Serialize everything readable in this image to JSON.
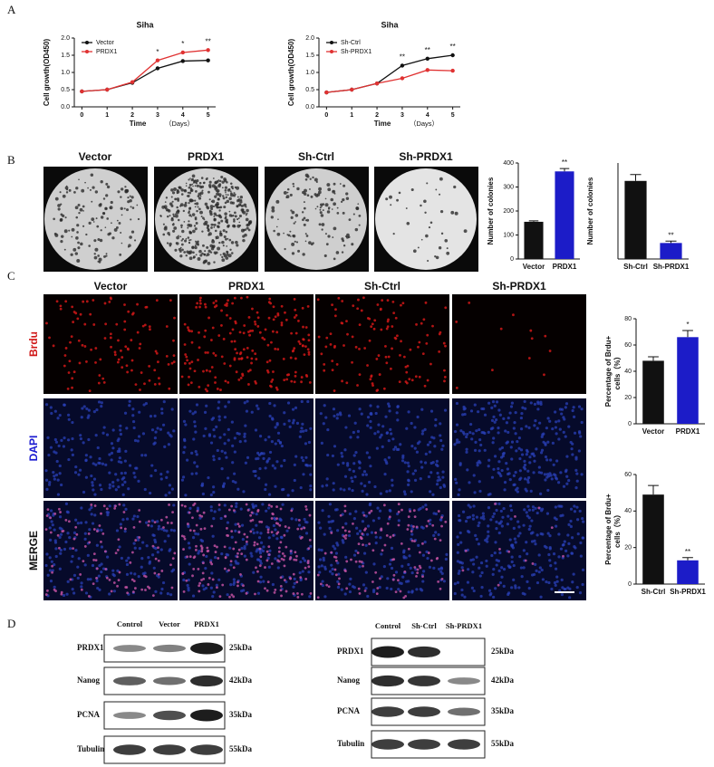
{
  "panels": {
    "letters": [
      "A",
      "B",
      "C",
      "D"
    ],
    "colony_columns": [
      "Vector",
      "PRDX1",
      "Sh-Ctrl",
      "Sh-PRDX1"
    ],
    "brdu_columns": [
      "Vector",
      "PRDX1",
      "Sh-Ctrl",
      "Sh-PRDX1"
    ],
    "rows": [
      "Brdu",
      "DAPI",
      "MERGE"
    ],
    "blots": [
      {
        "columns": [
          "Control",
          "Vector",
          "PRDX1"
        ],
        "rows": [
          {
            "protein": "PRDX1",
            "size": "25kDa"
          },
          {
            "protein": "Nanog",
            "size": "42kDa"
          },
          {
            "protein": "PCNA",
            "size": "35kDa"
          },
          {
            "protein": "Tubulin",
            "size": "55kDa"
          }
        ]
      },
      {
        "columns": [
          "Control",
          "Sh-Ctrl",
          "Sh-PRDX1"
        ],
        "rows": [
          {
            "protein": "PRDX1",
            "size": "25kDa"
          },
          {
            "protein": "Nanog",
            "size": "42kDa"
          },
          {
            "protein": "PCNA",
            "size": "35kDa"
          },
          {
            "protein": "Tubulin",
            "size": "55kDa"
          }
        ]
      }
    ]
  },
  "chart_data": [
    {
      "type": "line",
      "title": "Siha",
      "xlabel": "Time",
      "x_unit": "（Days）",
      "ylabel": "Cell growth(OD450)",
      "x": [
        0,
        1,
        2,
        3,
        4,
        5
      ],
      "xlim": [
        -0.3,
        5.3
      ],
      "xticks": [
        0,
        1,
        2,
        3,
        4,
        5
      ],
      "ylim": [
        0,
        2
      ],
      "yticks": [
        {
          "value": 0,
          "label": "0.0"
        },
        0.5,
        {
          "value": 1,
          "label": "1.0"
        },
        1.5,
        {
          "value": 2,
          "label": "2.0"
        }
      ],
      "series": [
        {
          "name": "Vector",
          "color": "#111111",
          "values": [
            0.45,
            0.5,
            0.7,
            1.12,
            1.33,
            1.35
          ]
        },
        {
          "name": "PRDX1",
          "color": "#e03232",
          "values": [
            0.45,
            0.5,
            0.72,
            1.35,
            1.58,
            1.65
          ]
        }
      ],
      "annotations": [
        {
          "x": 3,
          "text": "*"
        },
        {
          "x": 4,
          "text": "*"
        },
        {
          "x": 5,
          "text": "**"
        }
      ]
    },
    {
      "type": "line",
      "title": "Siha",
      "xlabel": "Time",
      "x_unit": "（Days）",
      "ylabel": "Cell growth(OD450)",
      "x": [
        0,
        1,
        2,
        3,
        4,
        5
      ],
      "xlim": [
        -0.3,
        5.3
      ],
      "xticks": [
        0,
        1,
        2,
        3,
        4,
        5
      ],
      "ylim": [
        0,
        2
      ],
      "yticks": [
        {
          "value": 0,
          "label": "0.0"
        },
        0.5,
        {
          "value": 1,
          "label": "1.0"
        },
        1.5,
        {
          "value": 2,
          "label": "2.0"
        }
      ],
      "series": [
        {
          "name": "Sh-Ctrl",
          "color": "#111111",
          "values": [
            0.42,
            0.5,
            0.68,
            1.2,
            1.4,
            1.5
          ]
        },
        {
          "name": "Sh-PRDX1",
          "color": "#e03232",
          "values": [
            0.42,
            0.5,
            0.68,
            0.83,
            1.07,
            1.05
          ]
        }
      ],
      "annotations": [
        {
          "x": 3,
          "text": "**"
        },
        {
          "x": 4,
          "text": "**"
        },
        {
          "x": 5,
          "text": "**"
        }
      ]
    },
    {
      "type": "bar",
      "ylabel": "Number of colonies",
      "categories": [
        "Vector",
        "PRDX1"
      ],
      "values": [
        155,
        365
      ],
      "errors": [
        4,
        12
      ],
      "colors": [
        "#111111",
        "#1c1cc8"
      ],
      "ylim": [
        0,
        400
      ],
      "yticks": [
        0,
        100,
        200,
        300,
        400
      ],
      "annotations": [
        "",
        "**"
      ]
    },
    {
      "type": "bar",
      "ylabel": "Number of colonies",
      "categories": [
        "Sh-Ctrl",
        "Sh-PRDX1"
      ],
      "values": [
        122,
        25
      ],
      "errors": [
        10,
        3
      ],
      "colors": [
        "#111111",
        "#1c1cc8"
      ],
      "ylim": [
        0,
        150
      ],
      "annotations": [
        "",
        "**"
      ]
    },
    {
      "type": "bar",
      "ylabel": [
        "Percentage of Brdu+",
        "cells（%）"
      ],
      "categories": [
        "Vector",
        "PRDX1"
      ],
      "values": [
        48,
        66
      ],
      "errors": [
        3,
        5
      ],
      "colors": [
        "#111111",
        "#1c1cc8"
      ],
      "ylim": [
        0,
        80
      ],
      "yticks": [
        0,
        20,
        40,
        60,
        80
      ],
      "annotations": [
        "",
        "*"
      ]
    },
    {
      "type": "bar",
      "ylabel": [
        "Percentage of Brdu+",
        "cells（%）"
      ],
      "categories": [
        "Sh-Ctrl",
        "Sh-PRDX1"
      ],
      "values": [
        49,
        13
      ],
      "errors": [
        5,
        1.5
      ],
      "colors": [
        "#111111",
        "#1c1cc8"
      ],
      "ylim": [
        0,
        60
      ],
      "yticks": [
        0,
        20,
        40,
        60
      ],
      "annotations": [
        "",
        "**"
      ]
    }
  ]
}
